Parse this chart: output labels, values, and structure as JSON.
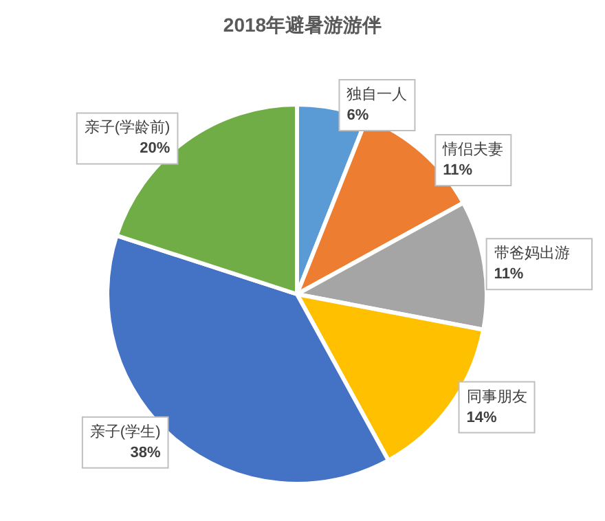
{
  "chart_data": {
    "type": "pie",
    "title": "2018年避暑游游伴",
    "categories": [
      "独自一人",
      "情侣夫妻",
      "带爸妈出游",
      "同事朋友",
      "亲子(学生)",
      "亲子(学龄前)"
    ],
    "values": [
      6,
      11,
      11,
      14,
      38,
      20
    ],
    "colors": [
      "#5b9bd5",
      "#ed7d31",
      "#a5a5a5",
      "#ffc000",
      "#4472c4",
      "#70ad47"
    ],
    "value_labels": [
      "6%",
      "11%",
      "11%",
      "14%",
      "38%",
      "20%"
    ],
    "legend": false
  }
}
